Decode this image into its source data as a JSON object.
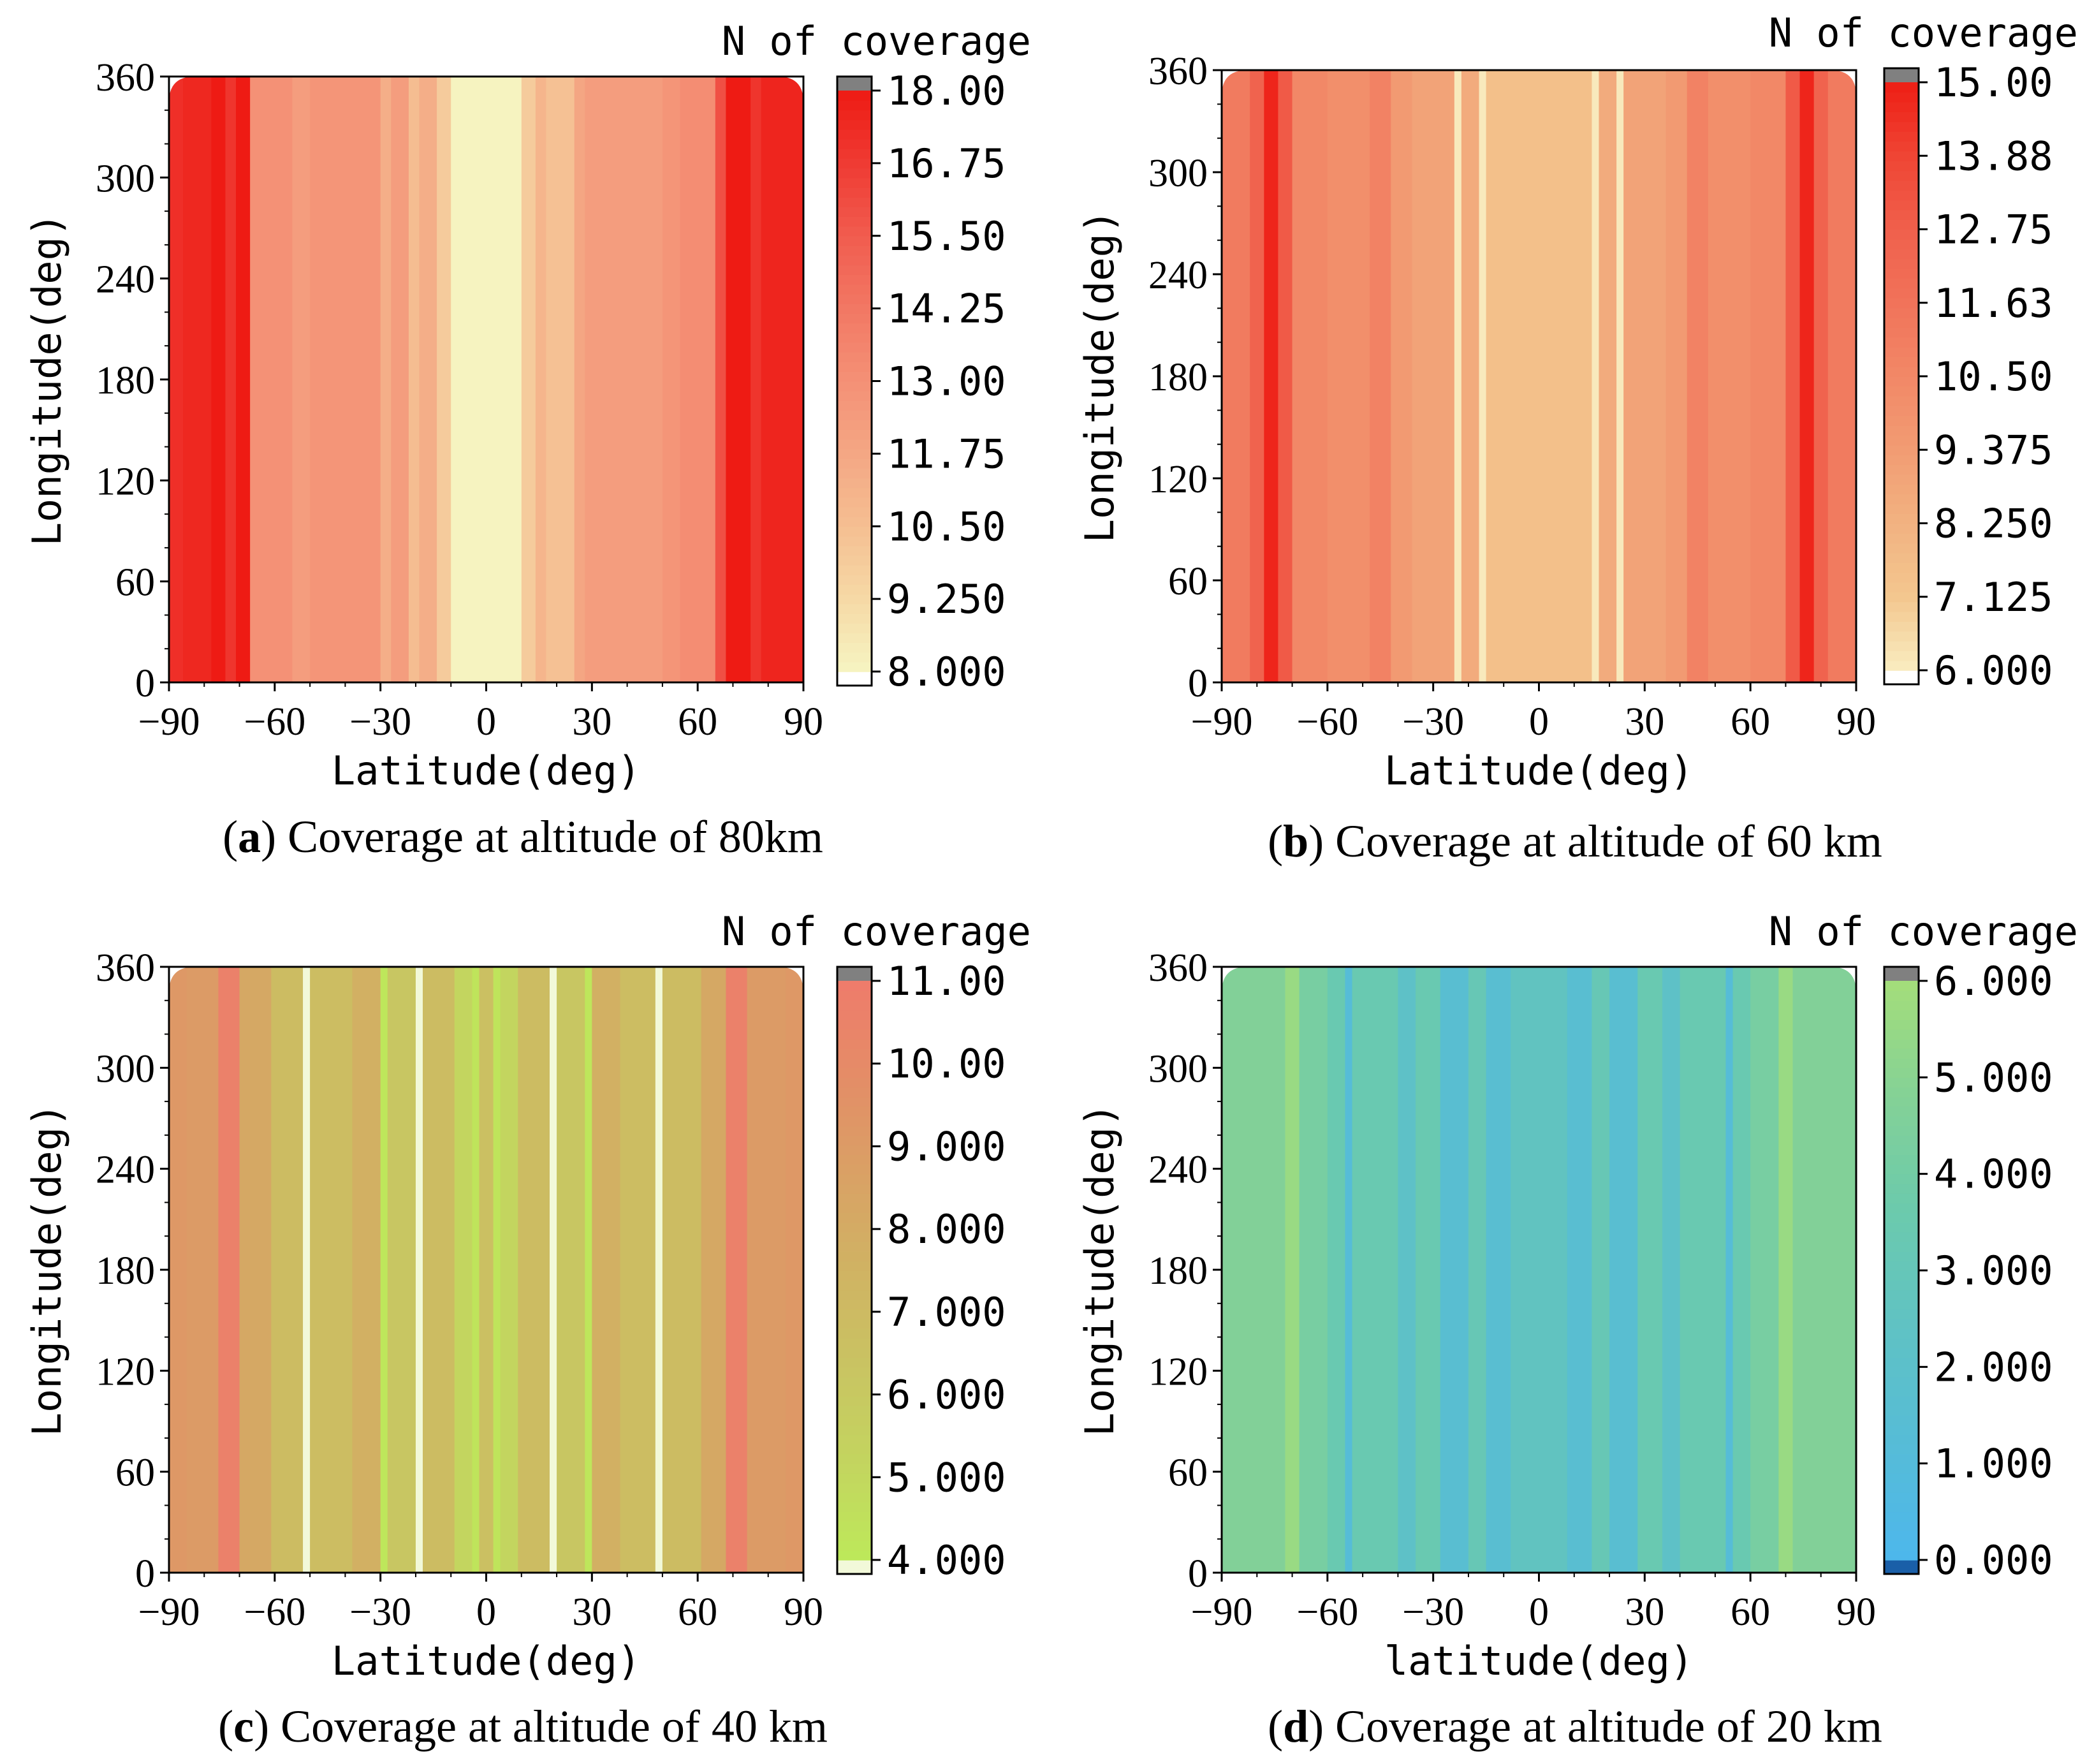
{
  "chart_data": [
    {
      "type": "heatmap",
      "caption_label": "a",
      "caption_text": "Coverage at altitude of 80km",
      "xlabel": "Latitude(deg)",
      "ylabel": "Longitude(deg)",
      "colorbar_title": "N of coverage",
      "xticks": [
        "-90",
        "-60",
        "-30",
        "0",
        "30",
        "60",
        "90"
      ],
      "yticks": [
        "0",
        "60",
        "120",
        "180",
        "240",
        "300",
        "360"
      ],
      "xlim": [
        -90,
        90
      ],
      "ylim": [
        0,
        360
      ],
      "colorbar_ticks": [
        "8.000",
        "9.250",
        "10.50",
        "11.75",
        "13.00",
        "14.25",
        "15.50",
        "16.75",
        "18.00"
      ],
      "value_range": [
        8,
        18
      ],
      "colors": [
        "#f6f5c2",
        "#f6d9a6",
        "#f5bf92",
        "#f4a784",
        "#f49176",
        "#f27864",
        "#f15c4f",
        "#ef3b33",
        "#ee1b14"
      ],
      "overflow_color": "#808080",
      "underflow_color": "#ffffff",
      "bands": [
        {
          "lat0": -90,
          "lat1": -86,
          "value": 17.2
        },
        {
          "lat0": -86,
          "lat1": -78,
          "value": 17.5
        },
        {
          "lat0": -78,
          "lat1": -74,
          "value": 18.0
        },
        {
          "lat0": -74,
          "lat1": -71,
          "value": 17.0
        },
        {
          "lat0": -71,
          "lat1": -67,
          "value": 18.0
        },
        {
          "lat0": -67,
          "lat1": -55,
          "value": 13.0
        },
        {
          "lat0": -55,
          "lat1": -50,
          "value": 12.3
        },
        {
          "lat0": -50,
          "lat1": -30,
          "value": 12.8
        },
        {
          "lat0": -30,
          "lat1": -27,
          "value": 11.4
        },
        {
          "lat0": -27,
          "lat1": -22,
          "value": 12.3
        },
        {
          "lat0": -22,
          "lat1": -19,
          "value": 10.6
        },
        {
          "lat0": -19,
          "lat1": -14,
          "value": 11.4
        },
        {
          "lat0": -14,
          "lat1": -10,
          "value": 9.9
        },
        {
          "lat0": -10,
          "lat1": 10,
          "value": 8.1
        },
        {
          "lat0": 10,
          "lat1": 14,
          "value": 9.9
        },
        {
          "lat0": 14,
          "lat1": 17,
          "value": 11.0
        },
        {
          "lat0": 17,
          "lat1": 25,
          "value": 10.4
        },
        {
          "lat0": 25,
          "lat1": 28,
          "value": 11.8
        },
        {
          "lat0": 28,
          "lat1": 50,
          "value": 12.3
        },
        {
          "lat0": 50,
          "lat1": 55,
          "value": 12.8
        },
        {
          "lat0": 55,
          "lat1": 65,
          "value": 13.2
        },
        {
          "lat0": 65,
          "lat1": 68,
          "value": 16.0
        },
        {
          "lat0": 68,
          "lat1": 75,
          "value": 18.0
        },
        {
          "lat0": 75,
          "lat1": 78,
          "value": 17.0
        },
        {
          "lat0": 78,
          "lat1": 90,
          "value": 17.6
        }
      ]
    },
    {
      "type": "heatmap",
      "caption_label": "b",
      "caption_text": "Coverage at altitude of 60 km",
      "xlabel": "Latitude(deg)",
      "ylabel": "Longitude(deg)",
      "colorbar_title": "N of coverage",
      "xticks": [
        "-90",
        "-60",
        "-30",
        "0",
        "30",
        "60",
        "90"
      ],
      "yticks": [
        "0",
        "60",
        "120",
        "180",
        "240",
        "300",
        "360"
      ],
      "xlim": [
        -90,
        90
      ],
      "ylim": [
        0,
        360
      ],
      "colorbar_ticks": [
        "6.000",
        "7.125",
        "8.250",
        "9.375",
        "10.50",
        "11.63",
        "12.75",
        "13.88",
        "15.00"
      ],
      "value_range": [
        6,
        15
      ],
      "colors": [
        "#f9ecc0",
        "#f3c78f",
        "#f2b281",
        "#f29c73",
        "#f28867",
        "#f1735a",
        "#f0604c",
        "#ef4534",
        "#ee1e15"
      ],
      "overflow_color": "#808080",
      "underflow_color": "#ffffff",
      "bands": [
        {
          "lat0": -90,
          "lat1": -82,
          "value": 11.2
        },
        {
          "lat0": -82,
          "lat1": -78,
          "value": 12.6
        },
        {
          "lat0": -78,
          "lat1": -74,
          "value": 14.8
        },
        {
          "lat0": -74,
          "lat1": -70,
          "value": 13.0
        },
        {
          "lat0": -70,
          "lat1": -60,
          "value": 10.5
        },
        {
          "lat0": -60,
          "lat1": -48,
          "value": 10.1
        },
        {
          "lat0": -48,
          "lat1": -42,
          "value": 10.8
        },
        {
          "lat0": -42,
          "lat1": -36,
          "value": 9.5
        },
        {
          "lat0": -36,
          "lat1": -24,
          "value": 9.0
        },
        {
          "lat0": -24,
          "lat1": -22,
          "value": 6.1
        },
        {
          "lat0": -22,
          "lat1": -17,
          "value": 8.6
        },
        {
          "lat0": -17,
          "lat1": -15,
          "value": 6.1
        },
        {
          "lat0": -15,
          "lat1": 15,
          "value": 7.5
        },
        {
          "lat0": 15,
          "lat1": 17,
          "value": 6.1
        },
        {
          "lat0": 17,
          "lat1": 22,
          "value": 8.6
        },
        {
          "lat0": 22,
          "lat1": 24,
          "value": 6.1
        },
        {
          "lat0": 24,
          "lat1": 36,
          "value": 9.0
        },
        {
          "lat0": 36,
          "lat1": 42,
          "value": 9.5
        },
        {
          "lat0": 42,
          "lat1": 48,
          "value": 10.8
        },
        {
          "lat0": 48,
          "lat1": 60,
          "value": 10.1
        },
        {
          "lat0": 60,
          "lat1": 70,
          "value": 10.5
        },
        {
          "lat0": 70,
          "lat1": 74,
          "value": 13.0
        },
        {
          "lat0": 74,
          "lat1": 78,
          "value": 14.8
        },
        {
          "lat0": 78,
          "lat1": 82,
          "value": 12.6
        },
        {
          "lat0": 82,
          "lat1": 90,
          "value": 11.2
        }
      ]
    },
    {
      "type": "heatmap",
      "caption_label": "c",
      "caption_text": "Coverage at altitude of 40 km",
      "xlabel": "Latitude(deg)",
      "ylabel": "Longitude(deg)",
      "colorbar_title": "N of coverage",
      "xticks": [
        "-90",
        "-60",
        "-30",
        "0",
        "30",
        "60",
        "90"
      ],
      "yticks": [
        "0",
        "60",
        "120",
        "180",
        "240",
        "300",
        "360"
      ],
      "xlim": [
        -90,
        90
      ],
      "ylim": [
        0,
        360
      ],
      "colorbar_ticks": [
        "4.000",
        "5.000",
        "6.000",
        "7.000",
        "8.000",
        "9.000",
        "10.00",
        "11.00"
      ],
      "value_range": [
        4,
        11
      ],
      "colors": [
        "#bde95a",
        "#c3d55f",
        "#c9c462",
        "#d0b363",
        "#d9a165",
        "#e48d67",
        "#ef7b6b"
      ],
      "overflow_color": "#808080",
      "underflow_color": "#f2f9d9",
      "bands": [
        {
          "lat0": -90,
          "lat1": -85,
          "value": 9.2
        },
        {
          "lat0": -85,
          "lat1": -76,
          "value": 9.0
        },
        {
          "lat0": -76,
          "lat1": -70,
          "value": 10.6
        },
        {
          "lat0": -70,
          "lat1": -61,
          "value": 8.2
        },
        {
          "lat0": -61,
          "lat1": -52,
          "value": 6.9
        },
        {
          "lat0": -52,
          "lat1": -50,
          "value": 3.9
        },
        {
          "lat0": -50,
          "lat1": -38,
          "value": 6.8
        },
        {
          "lat0": -38,
          "lat1": -30,
          "value": 7.7
        },
        {
          "lat0": -30,
          "lat1": -28,
          "value": 4.2
        },
        {
          "lat0": -28,
          "lat1": -20,
          "value": 6.2
        },
        {
          "lat0": -20,
          "lat1": -18,
          "value": 3.9
        },
        {
          "lat0": -18,
          "lat1": -9,
          "value": 6.9
        },
        {
          "lat0": -9,
          "lat1": -4,
          "value": 5.2
        },
        {
          "lat0": -4,
          "lat1": -2,
          "value": 4.3
        },
        {
          "lat0": -2,
          "lat1": 2,
          "value": 6.6
        },
        {
          "lat0": 2,
          "lat1": 4,
          "value": 4.3
        },
        {
          "lat0": 4,
          "lat1": 9,
          "value": 5.2
        },
        {
          "lat0": 9,
          "lat1": 18,
          "value": 6.9
        },
        {
          "lat0": 18,
          "lat1": 20,
          "value": 3.9
        },
        {
          "lat0": 20,
          "lat1": 28,
          "value": 6.2
        },
        {
          "lat0": 28,
          "lat1": 30,
          "value": 4.2
        },
        {
          "lat0": 30,
          "lat1": 38,
          "value": 7.7
        },
        {
          "lat0": 38,
          "lat1": 48,
          "value": 6.8
        },
        {
          "lat0": 48,
          "lat1": 50,
          "value": 3.9
        },
        {
          "lat0": 50,
          "lat1": 61,
          "value": 6.9
        },
        {
          "lat0": 61,
          "lat1": 68,
          "value": 8.2
        },
        {
          "lat0": 68,
          "lat1": 74,
          "value": 10.6
        },
        {
          "lat0": 74,
          "lat1": 85,
          "value": 9.0
        },
        {
          "lat0": 85,
          "lat1": 90,
          "value": 9.2
        }
      ]
    },
    {
      "type": "heatmap",
      "caption_label": "d",
      "caption_text": "Coverage at altitude of 20 km",
      "xlabel": "latitude(deg)",
      "ylabel": "Longitude(deg)",
      "colorbar_title": "N of coverage",
      "xticks": [
        "-90",
        "-60",
        "-30",
        "0",
        "30",
        "60",
        "90"
      ],
      "yticks": [
        "0",
        "60",
        "120",
        "180",
        "240",
        "300",
        "360"
      ],
      "xlim": [
        -90,
        90
      ],
      "ylim": [
        0,
        360
      ],
      "colorbar_ticks": [
        "0.000",
        "1.000",
        "2.000",
        "3.000",
        "4.000",
        "5.000",
        "6.000"
      ],
      "value_range": [
        0,
        6
      ],
      "colors": [
        "#4db7ec",
        "#56bcd7",
        "#5fc2c4",
        "#6bcaad",
        "#84d196",
        "#a4de7a"
      ],
      "overflow_color": "#808080",
      "underflow_color": "#1a5fa8",
      "bands": [
        {
          "lat0": -90,
          "lat1": -72,
          "value": 4.7
        },
        {
          "lat0": -72,
          "lat1": -68,
          "value": 5.6
        },
        {
          "lat0": -68,
          "lat1": -60,
          "value": 4.2
        },
        {
          "lat0": -60,
          "lat1": -55,
          "value": 3.4
        },
        {
          "lat0": -55,
          "lat1": -53,
          "value": 1.2
        },
        {
          "lat0": -53,
          "lat1": -40,
          "value": 3.4
        },
        {
          "lat0": -40,
          "lat1": -35,
          "value": 2.2
        },
        {
          "lat0": -35,
          "lat1": -28,
          "value": 3.4
        },
        {
          "lat0": -28,
          "lat1": -20,
          "value": 1.6
        },
        {
          "lat0": -20,
          "lat1": -15,
          "value": 3.2
        },
        {
          "lat0": -15,
          "lat1": -8,
          "value": 1.6
        },
        {
          "lat0": -8,
          "lat1": 8,
          "value": 2.6
        },
        {
          "lat0": 8,
          "lat1": 15,
          "value": 1.6
        },
        {
          "lat0": 15,
          "lat1": 20,
          "value": 3.2
        },
        {
          "lat0": 20,
          "lat1": 28,
          "value": 1.6
        },
        {
          "lat0": 28,
          "lat1": 35,
          "value": 3.4
        },
        {
          "lat0": 35,
          "lat1": 40,
          "value": 2.2
        },
        {
          "lat0": 40,
          "lat1": 53,
          "value": 3.4
        },
        {
          "lat0": 53,
          "lat1": 55,
          "value": 1.2
        },
        {
          "lat0": 55,
          "lat1": 60,
          "value": 3.4
        },
        {
          "lat0": 60,
          "lat1": 68,
          "value": 4.2
        },
        {
          "lat0": 68,
          "lat1": 72,
          "value": 5.6
        },
        {
          "lat0": 72,
          "lat1": 90,
          "value": 4.7
        }
      ]
    }
  ]
}
